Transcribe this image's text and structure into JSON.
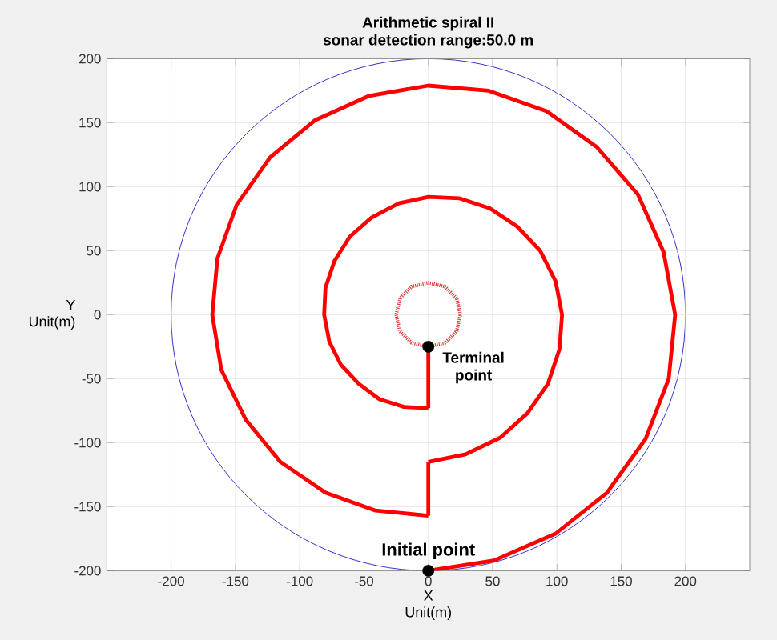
{
  "chart_data": {
    "type": "line",
    "title": "Arithmetic spiral II",
    "subtitle": "sonar detection range:50.0 m",
    "xlabel": "X Unit(m)",
    "ylabel": "Y Unit(m)",
    "xlim": [
      -250,
      250
    ],
    "ylim": [
      -200,
      200
    ],
    "xticks": [
      -200,
      -150,
      -100,
      -50,
      0,
      50,
      100,
      150,
      200
    ],
    "yticks": [
      -200,
      -150,
      -100,
      -50,
      0,
      50,
      100,
      150,
      200
    ],
    "grid": true,
    "series": [
      {
        "color": "#ff0000",
        "x": [
          0,
          51,
          99,
          139,
          169,
          187,
          192,
          183,
          163,
          131,
          92,
          47,
          0,
          -46,
          -88,
          -123,
          -149,
          -164,
          -168,
          -161,
          -142,
          -115,
          -80,
          -41,
          0
        ],
        "values": [
          -200,
          -192,
          -171,
          -139,
          -97,
          -50,
          0,
          49,
          94,
          131,
          159,
          175,
          179,
          171,
          152,
          123,
          86,
          44,
          0,
          -43,
          -82,
          -115,
          -139,
          -153,
          -157
        ]
      },
      {
        "color": "#ff0000",
        "x": [
          0,
          0
        ],
        "values": [
          -157,
          -115
        ]
      },
      {
        "color": "#ff0000",
        "x": [
          0,
          29,
          56,
          77,
          93,
          102,
          104,
          99,
          87,
          69,
          48,
          24,
          0,
          -23,
          -44,
          -61,
          -73,
          -80,
          -81,
          -77,
          -68,
          -54,
          -38,
          -19,
          0
        ],
        "values": [
          -115,
          -109,
          -96,
          -77,
          -54,
          -27,
          0,
          26,
          50,
          69,
          83,
          91,
          92,
          87,
          76,
          61,
          42,
          21,
          0,
          -21,
          -39,
          -54,
          -66,
          -72,
          -73
        ]
      },
      {
        "color": "#ff0000",
        "x": [
          0,
          0
        ],
        "values": [
          -73,
          -25
        ]
      },
      {
        "color": "#e03a3a",
        "line_style": "dotted",
        "x": [
          25,
          22,
          13,
          0,
          -13,
          -22,
          -25
        ],
        "values": [
          0,
          13,
          22,
          25,
          22,
          13,
          0
        ]
      },
      {
        "color": "#e03a3a",
        "line_style": "dotted",
        "x": [
          -25,
          -22,
          -13,
          0,
          13,
          22,
          25
        ],
        "values": [
          0,
          -13,
          -22,
          -25,
          -22,
          -13,
          0
        ]
      },
      {
        "type": "scatter",
        "color": "#000000",
        "marker": "circle",
        "x": [
          0,
          0
        ],
        "values": [
          -200,
          -25
        ]
      }
    ],
    "annotations": [
      {
        "text": "Initial point",
        "x": 0,
        "y": -200
      },
      {
        "text": "Terminal point",
        "x": 0,
        "y": -25
      }
    ]
  }
}
